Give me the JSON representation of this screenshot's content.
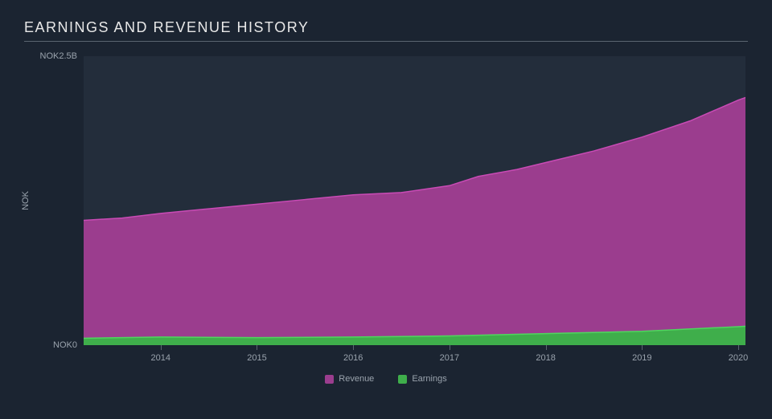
{
  "chart": {
    "type": "area",
    "title": "EARNINGS AND REVENUE HISTORY",
    "title_color": "#e8e8e8",
    "title_fontsize": 18,
    "background_color": "#1b2431",
    "plot_background_color": "#232d3b",
    "axis_text_color": "#9aa3ad",
    "axis_line_color": "#5a6470",
    "y_axis": {
      "title": "NOK",
      "min": 0,
      "max": 2.5,
      "labels": [
        {
          "value": 0,
          "text": "NOK0"
        },
        {
          "value": 2.5,
          "text": "NOK2.5B"
        }
      ]
    },
    "x_axis": {
      "min": 2013.2,
      "max": 2020.1,
      "ticks": [
        2014,
        2015,
        2016,
        2017,
        2018,
        2019,
        2020
      ]
    },
    "series": [
      {
        "name": "Revenue",
        "fill_color": "#9b3d8e",
        "stroke_color": "#c94bb5",
        "stroke_width": 1.5,
        "data": [
          {
            "x": 2013.2,
            "y": 1.08
          },
          {
            "x": 2013.6,
            "y": 1.1
          },
          {
            "x": 2014.0,
            "y": 1.14
          },
          {
            "x": 2014.5,
            "y": 1.18
          },
          {
            "x": 2015.0,
            "y": 1.22
          },
          {
            "x": 2015.5,
            "y": 1.26
          },
          {
            "x": 2016.0,
            "y": 1.3
          },
          {
            "x": 2016.5,
            "y": 1.32
          },
          {
            "x": 2017.0,
            "y": 1.38
          },
          {
            "x": 2017.3,
            "y": 1.46
          },
          {
            "x": 2017.7,
            "y": 1.52
          },
          {
            "x": 2018.0,
            "y": 1.58
          },
          {
            "x": 2018.5,
            "y": 1.68
          },
          {
            "x": 2019.0,
            "y": 1.8
          },
          {
            "x": 2019.5,
            "y": 1.94
          },
          {
            "x": 2020.0,
            "y": 2.12
          },
          {
            "x": 2020.1,
            "y": 2.15
          }
        ]
      },
      {
        "name": "Earnings",
        "fill_color": "#3fae4b",
        "stroke_color": "#4fd65e",
        "stroke_width": 1.5,
        "data": [
          {
            "x": 2013.2,
            "y": 0.06
          },
          {
            "x": 2014.0,
            "y": 0.07
          },
          {
            "x": 2015.0,
            "y": 0.065
          },
          {
            "x": 2016.0,
            "y": 0.07
          },
          {
            "x": 2017.0,
            "y": 0.08
          },
          {
            "x": 2018.0,
            "y": 0.1
          },
          {
            "x": 2019.0,
            "y": 0.12
          },
          {
            "x": 2020.0,
            "y": 0.16
          },
          {
            "x": 2020.1,
            "y": 0.165
          }
        ]
      }
    ],
    "legend": {
      "items": [
        {
          "label": "Revenue",
          "color": "#9b3d8e"
        },
        {
          "label": "Earnings",
          "color": "#3fae4b"
        }
      ]
    }
  }
}
